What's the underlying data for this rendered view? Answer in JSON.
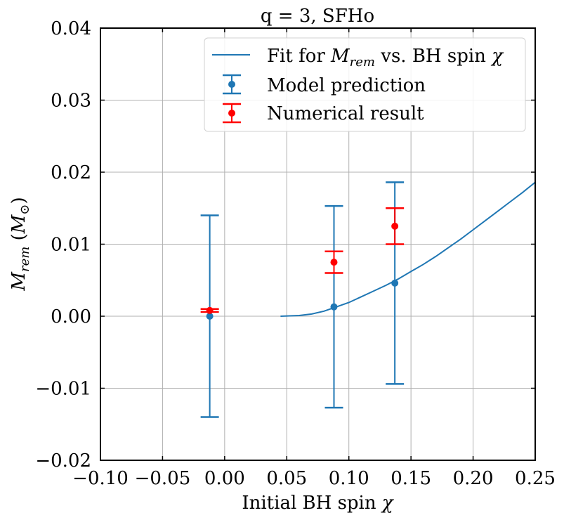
{
  "chart_data": {
    "type": "scatter",
    "title": "q = 3, SFHo",
    "xlabel": {
      "prefix": "Initial BH spin ",
      "symbol": "χ"
    },
    "ylabel": {
      "symbol": "M",
      "sub": "rem",
      "unit_open": " (",
      "unit_symbol": "M",
      "unit_sub": "⊙",
      "unit_close": ")"
    },
    "xlim": [
      -0.1,
      0.25
    ],
    "ylim": [
      -0.02,
      0.04
    ],
    "xticks": [
      -0.1,
      -0.05,
      0.0,
      0.05,
      0.1,
      0.15,
      0.2,
      0.25
    ],
    "xtick_labels": [
      "−0.10",
      "−0.05",
      "0.00",
      "0.05",
      "0.10",
      "0.15",
      "0.20",
      "0.25"
    ],
    "yticks": [
      -0.02,
      -0.01,
      0.0,
      0.01,
      0.02,
      0.03,
      0.04
    ],
    "ytick_labels": [
      "−0.02",
      "−0.01",
      "0.00",
      "0.01",
      "0.02",
      "0.03",
      "0.04"
    ],
    "grid": true,
    "legend_position": "top-right",
    "fit_line": {
      "name": "Fit for M_rem vs. BH spin χ",
      "color": "#1f77b4",
      "x": [
        0.045,
        0.06,
        0.07,
        0.08,
        0.09,
        0.1,
        0.11,
        0.12,
        0.13,
        0.14,
        0.15,
        0.16,
        0.17,
        0.18,
        0.19,
        0.2,
        0.21,
        0.22,
        0.23,
        0.24,
        0.25
      ],
      "y": [
        0.0,
        0.0001,
        0.0003,
        0.0007,
        0.0013,
        0.0019,
        0.0027,
        0.0035,
        0.0043,
        0.0052,
        0.0062,
        0.0072,
        0.0083,
        0.0095,
        0.0107,
        0.012,
        0.0133,
        0.0146,
        0.0159,
        0.0172,
        0.0186
      ]
    },
    "series": [
      {
        "name": "Model prediction",
        "color": "#1f77b4",
        "points": [
          {
            "x": -0.012,
            "y": 0.0,
            "ylow": -0.014,
            "yhigh": 0.014
          },
          {
            "x": 0.088,
            "y": 0.0013,
            "ylow": -0.0127,
            "yhigh": 0.0153
          },
          {
            "x": 0.137,
            "y": 0.0046,
            "ylow": -0.0094,
            "yhigh": 0.0186
          }
        ]
      },
      {
        "name": "Numerical result",
        "color": "#ff0000",
        "points": [
          {
            "x": -0.012,
            "y": 0.0008,
            "ylow": 0.0006,
            "yhigh": 0.001
          },
          {
            "x": 0.088,
            "y": 0.0075,
            "ylow": 0.006,
            "yhigh": 0.009
          },
          {
            "x": 0.137,
            "y": 0.0125,
            "ylow": 0.01,
            "yhigh": 0.015
          }
        ]
      }
    ],
    "legend": {
      "fit_label": {
        "prefix": "Fit for ",
        "symbol": "M",
        "sub": "rem",
        "suffix": " vs. BH spin ",
        "end_symbol": "χ"
      },
      "model_label": "Model prediction",
      "numerical_label": "Numerical result"
    }
  }
}
